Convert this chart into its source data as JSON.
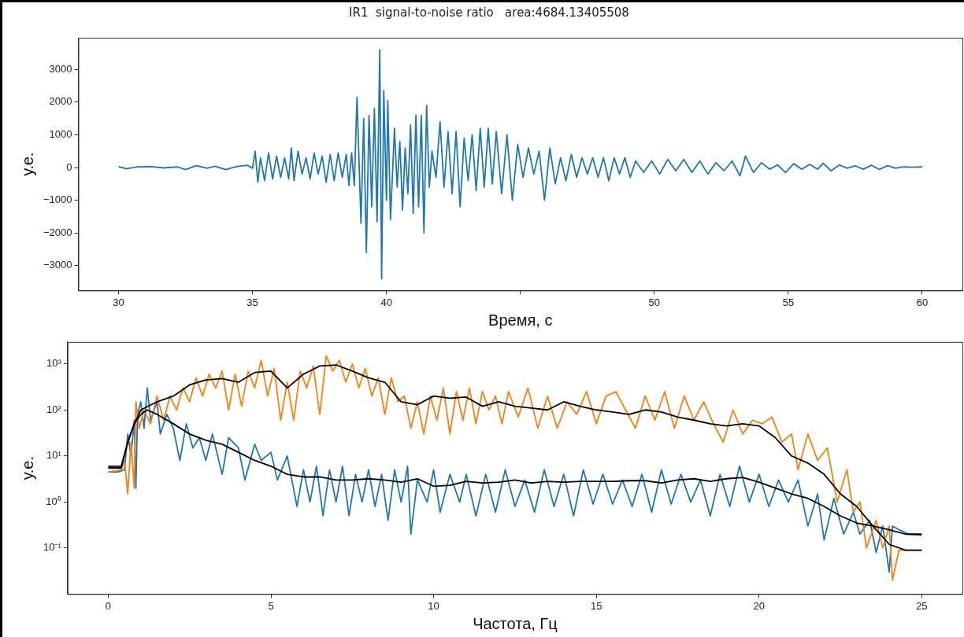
{
  "chart_data": [
    {
      "type": "line",
      "title": "IR1  signal-to-noise ratio   area:4684.13405508",
      "xlabel": "Время, с",
      "ylabel": "у.е.",
      "grid": false,
      "legend": false,
      "marker": "none",
      "line_style": "solid",
      "xlim": [
        28.5,
        61.5
      ],
      "xticks": [
        30,
        35,
        40,
        {
          "value": 45,
          "label": null
        },
        50,
        55,
        60
      ],
      "ylim": [
        -3760,
        3970
      ],
      "yticks": [
        {
          "value": -3000,
          "label": "−3000"
        },
        {
          "value": -2000,
          "label": "−2000"
        },
        {
          "value": -1000,
          "label": "−1000"
        },
        0,
        1000,
        2000,
        3000
      ],
      "series": [
        {
          "color": "#1f77b4",
          "x": [
            30,
            30.3,
            30.7,
            31.2,
            31.7,
            32.2,
            32.5,
            32.9,
            33.3,
            33.6,
            34,
            34.4,
            34.8,
            35,
            35.1,
            35.2,
            35.3,
            35.45,
            35.6,
            35.75,
            35.9,
            36.05,
            36.2,
            36.35,
            36.45,
            36.55,
            36.7,
            36.85,
            37,
            37.15,
            37.3,
            37.45,
            37.6,
            37.75,
            37.9,
            38.05,
            38.2,
            38.35,
            38.5,
            38.6,
            38.7,
            38.8,
            38.9,
            39.05,
            39.15,
            39.25,
            39.35,
            39.45,
            39.55,
            39.65,
            39.75,
            39.82,
            39.9,
            40,
            40.05,
            40.15,
            40.3,
            40.4,
            40.5,
            40.6,
            40.7,
            40.8,
            40.9,
            41,
            41.1,
            41.2,
            41.3,
            41.4,
            41.5,
            41.6,
            41.7,
            41.85,
            42,
            42.15,
            42.3,
            42.45,
            42.6,
            42.75,
            42.9,
            43.05,
            43.2,
            43.35,
            43.5,
            43.65,
            43.8,
            43.95,
            44.1,
            44.3,
            44.5,
            44.7,
            44.9,
            45.1,
            45.3,
            45.5,
            45.7,
            45.9,
            46.1,
            46.3,
            46.5,
            46.7,
            46.9,
            47.1,
            47.3,
            47.5,
            47.7,
            47.9,
            48.1,
            48.3,
            48.5,
            48.7,
            48.9,
            49.1,
            49.3,
            49.6,
            49.9,
            50.2,
            50.5,
            50.8,
            51.1,
            51.4,
            51.7,
            52,
            52.3,
            52.6,
            52.9,
            53.2,
            53.4,
            53.7,
            54,
            54.3,
            54.6,
            54.9,
            55.2,
            55.5,
            55.8,
            56.1,
            56.3,
            56.6,
            56.9,
            57.2,
            57.5,
            57.8,
            58.1,
            58.4,
            58.7,
            59,
            59.3,
            59.6,
            60
          ],
          "values": [
            30,
            -40,
            20,
            30,
            -10,
            20,
            -60,
            60,
            -20,
            40,
            -60,
            30,
            70,
            -20,
            500,
            -450,
            300,
            -400,
            450,
            -350,
            350,
            -300,
            300,
            -350,
            600,
            -400,
            500,
            -200,
            300,
            -350,
            450,
            -200,
            350,
            -450,
            400,
            -400,
            450,
            -300,
            400,
            -550,
            450,
            -550,
            2150,
            -1700,
            1500,
            -2600,
            1600,
            -1200,
            1800,
            -1650,
            3600,
            -3400,
            2350,
            -1000,
            2050,
            -1600,
            1200,
            -600,
            800,
            -1300,
            600,
            -800,
            1300,
            -1400,
            1600,
            -1200,
            1600,
            -2000,
            1900,
            -600,
            500,
            -300,
            1400,
            -600,
            1100,
            -800,
            1100,
            -1200,
            900,
            -400,
            1000,
            -700,
            1200,
            -600,
            1200,
            -500,
            1100,
            -800,
            1000,
            -1000,
            700,
            -300,
            600,
            -200,
            500,
            -1000,
            600,
            -500,
            300,
            -400,
            400,
            -300,
            300,
            -200,
            300,
            -300,
            300,
            -400,
            300,
            -200,
            300,
            -300,
            200,
            -150,
            200,
            -200,
            250,
            -100,
            250,
            -150,
            200,
            -200,
            150,
            -100,
            200,
            -250,
            350,
            -150,
            150,
            -50,
            80,
            -150,
            120,
            -50,
            100,
            -50,
            130,
            -100,
            80,
            -20,
            50,
            -50,
            70,
            -60,
            60,
            -20,
            20,
            10,
            20
          ]
        }
      ]
    },
    {
      "type": "line",
      "xlabel": "Частота, Гц",
      "ylabel": "у.е.",
      "grid": false,
      "legend": false,
      "marker": "none",
      "line_style": "solid",
      "log": "y",
      "xlim": [
        -1.25,
        26.25
      ],
      "xticks": [
        0,
        5,
        10,
        15,
        20,
        25
      ],
      "ylim": [
        0.01,
        3000
      ],
      "yticks": [
        {
          "value": 0.1,
          "label": "10⁻¹"
        },
        {
          "value": 1,
          "label": "10⁰"
        },
        {
          "value": 10,
          "label": "10¹"
        },
        {
          "value": 100,
          "label": "10²"
        },
        {
          "value": 1000,
          "label": "10³"
        }
      ],
      "series": [
        {
          "color": "#1f77b4",
          "x": [
            0,
            0.3,
            0.5,
            0.6,
            0.7,
            0.8,
            0.85,
            0.9,
            1,
            1.1,
            1.2,
            1.3,
            1.5,
            1.6,
            1.8,
            2,
            2.2,
            2.4,
            2.6,
            2.8,
            3,
            3.2,
            3.5,
            3.7,
            4,
            4.2,
            4.5,
            4.7,
            5,
            5.2,
            5.5,
            5.8,
            6,
            6.2,
            6.4,
            6.6,
            6.8,
            7,
            7.2,
            7.4,
            7.6,
            7.8,
            8,
            8.2,
            8.4,
            8.6,
            8.8,
            9,
            9.2,
            9.3,
            9.5,
            9.8,
            10,
            10.2,
            10.5,
            10.8,
            11,
            11.3,
            11.6,
            11.9,
            12.2,
            12.5,
            12.8,
            13.1,
            13.4,
            13.7,
            14,
            14.3,
            14.6,
            14.9,
            15.2,
            15.5,
            15.8,
            16.1,
            16.4,
            16.7,
            17,
            17.3,
            17.6,
            17.9,
            18.2,
            18.5,
            18.8,
            19.1,
            19.4,
            19.7,
            20,
            20.3,
            20.6,
            20.9,
            21.2,
            21.5,
            21.8,
            22,
            22.3,
            22.6,
            22.9,
            23.1,
            23.4,
            23.6,
            23.8,
            24,
            24.1,
            24.3,
            24.6,
            25
          ],
          "values": [
            4.5,
            4.5,
            5,
            30,
            10,
            60,
            2,
            80,
            150,
            40,
            300,
            60,
            150,
            30,
            80,
            40,
            8,
            50,
            15,
            25,
            8,
            30,
            4,
            25,
            15,
            3,
            18,
            8,
            12,
            3,
            10,
            0.8,
            5,
            1,
            6,
            0.5,
            5,
            1,
            6,
            0.5,
            4,
            1,
            5,
            0.8,
            4,
            0.4,
            5,
            1,
            6,
            0.2,
            3,
            1,
            5,
            0.6,
            4,
            1,
            4,
            0.5,
            4,
            0.6,
            5,
            0.8,
            3,
            0.6,
            5,
            0.8,
            4,
            0.5,
            5,
            0.9,
            4,
            0.9,
            3,
            0.8,
            4,
            0.6,
            5,
            0.9,
            4,
            1,
            3,
            0.5,
            4,
            0.8,
            6,
            1,
            4,
            0.8,
            3,
            1,
            3,
            0.3,
            1.5,
            0.15,
            1.2,
            0.2,
            0.6,
            0.2,
            0.4,
            0.08,
            0.3,
            0.03,
            0.3,
            0.25,
            0.2,
            0.19
          ]
        },
        {
          "color": "#ff7f0e",
          "x": [
            0,
            0.4,
            0.5,
            0.6,
            0.7,
            0.8,
            0.85,
            0.95,
            1.1,
            1.3,
            1.5,
            1.7,
            1.9,
            2.1,
            2.3,
            2.5,
            2.7,
            2.9,
            3.1,
            3.3,
            3.5,
            3.7,
            3.9,
            4.1,
            4.3,
            4.5,
            4.7,
            4.9,
            5.1,
            5.3,
            5.5,
            5.7,
            5.9,
            6.1,
            6.3,
            6.5,
            6.7,
            6.9,
            7.1,
            7.3,
            7.5,
            7.7,
            7.9,
            8.1,
            8.3,
            8.5,
            8.7,
            8.9,
            9.1,
            9.3,
            9.5,
            9.7,
            9.9,
            10.1,
            10.3,
            10.5,
            10.7,
            10.9,
            11.1,
            11.3,
            11.5,
            11.7,
            11.9,
            12.1,
            12.3,
            12.6,
            12.9,
            13.2,
            13.5,
            13.8,
            14.1,
            14.4,
            14.7,
            15,
            15.3,
            15.6,
            15.9,
            16.2,
            16.5,
            16.8,
            17.1,
            17.4,
            17.7,
            18,
            18.3,
            18.6,
            18.9,
            19.2,
            19.5,
            19.8,
            20.1,
            20.4,
            20.7,
            21,
            21.2,
            21.5,
            21.8,
            22.1,
            22.4,
            22.7,
            22.9,
            23.1,
            23.3,
            23.6,
            23.8,
            24,
            24.1,
            24.3,
            25
          ],
          "values": [
            4.5,
            5,
            8,
            1.5,
            20,
            2,
            150,
            40,
            100,
            50,
            200,
            60,
            200,
            100,
            300,
            150,
            500,
            200,
            600,
            300,
            700,
            100,
            600,
            120,
            700,
            300,
            1200,
            200,
            800,
            60,
            400,
            60,
            700,
            300,
            900,
            80,
            1500,
            700,
            1200,
            400,
            1000,
            300,
            800,
            200,
            500,
            80,
            500,
            150,
            200,
            40,
            150,
            30,
            200,
            60,
            300,
            30,
            250,
            60,
            300,
            50,
            250,
            100,
            200,
            50,
            250,
            70,
            300,
            40,
            200,
            40,
            150,
            80,
            250,
            50,
            200,
            250,
            100,
            40,
            200,
            60,
            250,
            40,
            200,
            60,
            150,
            50,
            20,
            100,
            30,
            60,
            50,
            70,
            20,
            30,
            5,
            30,
            8,
            15,
            1,
            5,
            0.6,
            1,
            0.1,
            0.4,
            0.1,
            0.3,
            0.02,
            0.09,
            0.09
          ]
        },
        {
          "color": "#000000",
          "x": [
            0,
            0.4,
            0.6,
            0.8,
            1,
            1.2,
            1.5,
            2,
            2.5,
            3,
            3.5,
            4,
            4.5,
            5,
            5.5,
            6,
            6.5,
            7,
            7.5,
            8,
            8.5,
            9,
            9.5,
            10,
            10.5,
            11,
            11.5,
            12,
            12.5,
            13,
            13.5,
            14,
            14.5,
            15,
            15.5,
            16,
            16.5,
            17,
            17.5,
            18,
            18.5,
            19,
            19.5,
            20,
            20.5,
            21,
            21.5,
            22,
            22.5,
            23,
            23.5,
            24,
            24.5,
            25
          ],
          "values": [
            5.5,
            5.5,
            20,
            50,
            80,
            100,
            80,
            50,
            30,
            22,
            18,
            12,
            8,
            6,
            4,
            3.5,
            3.5,
            3,
            3,
            3.2,
            3,
            2.7,
            3.2,
            2.2,
            2.3,
            2.8,
            2.6,
            2.7,
            3,
            2.6,
            2.8,
            2.7,
            2.8,
            2.8,
            2.8,
            2.9,
            2.9,
            2.6,
            3,
            3.2,
            2.8,
            3.2,
            3.4,
            2.7,
            2,
            1.5,
            1.2,
            0.8,
            0.5,
            0.35,
            0.3,
            0.25,
            0.2,
            0.2
          ]
        },
        {
          "color": "#000000",
          "x": [
            0,
            0.4,
            0.6,
            0.8,
            1,
            1.5,
            2,
            2.5,
            3,
            3.5,
            4,
            4.5,
            5,
            5.5,
            6,
            6.5,
            7,
            7.5,
            8,
            8.5,
            9,
            9.5,
            10,
            10.5,
            11,
            11.5,
            12,
            12.5,
            13,
            13.5,
            14,
            14.5,
            15,
            15.5,
            16,
            16.5,
            17,
            17.5,
            18,
            18.5,
            19,
            19.5,
            20,
            20.5,
            21,
            21.5,
            22,
            22.5,
            23,
            23.5,
            24,
            24.5,
            25
          ],
          "values": [
            6,
            6,
            20,
            50,
            100,
            150,
            200,
            350,
            450,
            480,
            400,
            650,
            700,
            300,
            600,
            900,
            950,
            700,
            500,
            400,
            150,
            130,
            200,
            180,
            190,
            120,
            150,
            120,
            110,
            100,
            150,
            120,
            100,
            90,
            80,
            100,
            90,
            70,
            60,
            50,
            45,
            50,
            45,
            25,
            10,
            7,
            4,
            1.5,
            0.8,
            0.3,
            0.12,
            0.09,
            0.09
          ]
        }
      ]
    }
  ]
}
